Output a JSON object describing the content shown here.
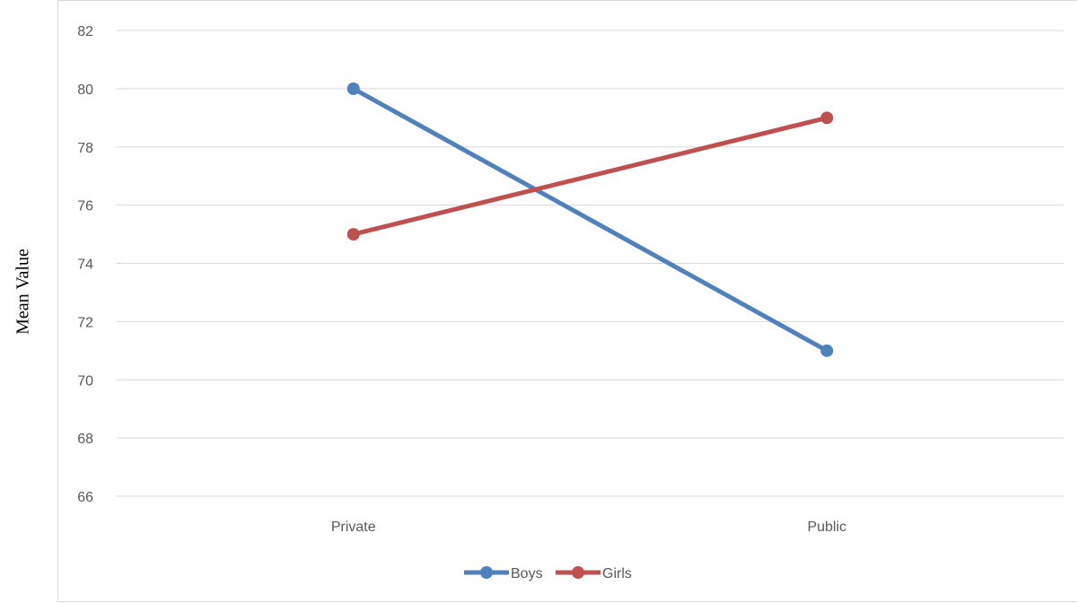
{
  "chart_data": {
    "type": "line",
    "title": "",
    "xlabel": "",
    "ylabel": "Mean Value",
    "categories": [
      "Private",
      "Public"
    ],
    "series": [
      {
        "name": "Boys",
        "values": [
          80,
          71
        ],
        "color": "#4f81bd"
      },
      {
        "name": "Girls",
        "values": [
          75,
          79
        ],
        "color": "#c0504d"
      }
    ],
    "ylim": [
      66,
      82
    ],
    "yticks": [
      "66",
      "68",
      "70",
      "72",
      "74",
      "76",
      "78",
      "80",
      "82"
    ],
    "grid": true,
    "legend_position": "bottom"
  }
}
